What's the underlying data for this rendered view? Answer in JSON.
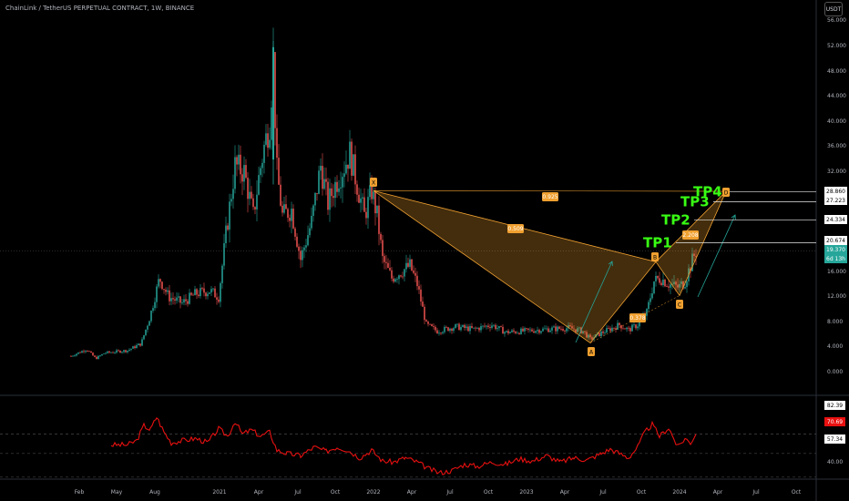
{
  "header": {
    "title": "ChainLink / TetherUS PERPETUAL CONTRACT, 1W, BINANCE",
    "currency": "USDT"
  },
  "chart_data": {
    "type": "candlestick",
    "ylim": [
      0,
      56
    ],
    "price_ticks": [
      "56.000",
      "52.000",
      "48.000",
      "44.000",
      "40.000",
      "36.000",
      "32.000",
      "16.000",
      "12.000",
      "8.000",
      "4.000",
      "0.000"
    ],
    "time_ticks": [
      "Feb",
      "May",
      "Aug",
      "2021",
      "Apr",
      "Jul",
      "Oct",
      "2022",
      "Apr",
      "Jul",
      "Oct",
      "2023",
      "Apr",
      "Jul",
      "Oct",
      "2024",
      "Apr",
      "Jul",
      "Oct"
    ],
    "price_labels": [
      {
        "text": "28.860",
        "value": 28.86,
        "color": "#ffffff",
        "bg": "#ffffff",
        "fg": "#000000"
      },
      {
        "text": "27.223",
        "value": 27.223,
        "color": "#ffffff",
        "bg": "#ffffff",
        "fg": "#000000"
      },
      {
        "text": "24.334",
        "value": 24.334,
        "color": "#ffffff",
        "bg": "#ffffff",
        "fg": "#000000"
      },
      {
        "text": "20.674",
        "value": 20.674,
        "color": "#ffffff",
        "bg": "#ffffff",
        "fg": "#000000"
      },
      {
        "text": "19.370",
        "value": 19.37,
        "color": "#26a69a",
        "bg": "#26a69a",
        "fg": "#ffffff"
      },
      {
        "text": "6d 13h",
        "value": 18.2,
        "color": "#26a69a",
        "bg": "#26a69a",
        "fg": "#ffffff"
      }
    ],
    "targets": [
      {
        "name": "TP4",
        "value": 28.86
      },
      {
        "name": "TP3",
        "value": 27.223
      },
      {
        "name": "TP2",
        "value": 24.334
      },
      {
        "name": "TP1",
        "value": 20.674
      }
    ],
    "pattern_points": [
      {
        "name": "X",
        "value": 29.0
      },
      {
        "name": "A",
        "value": 4.8
      },
      {
        "name": "B",
        "value": 17.7
      },
      {
        "name": "C",
        "value": 11.5
      },
      {
        "name": "D",
        "value": 28.9
      }
    ],
    "ratios": [
      "0.925",
      "0.509",
      "0.378",
      "2.208"
    ],
    "rsi": {
      "ticks": [
        "82.39",
        "70.69",
        "57.34",
        "40.00"
      ],
      "current": 70.69
    },
    "colors": {
      "up": "#26a69a",
      "down": "#ef5350",
      "rsi": "#e81010",
      "pattern": "#f0a030"
    }
  }
}
